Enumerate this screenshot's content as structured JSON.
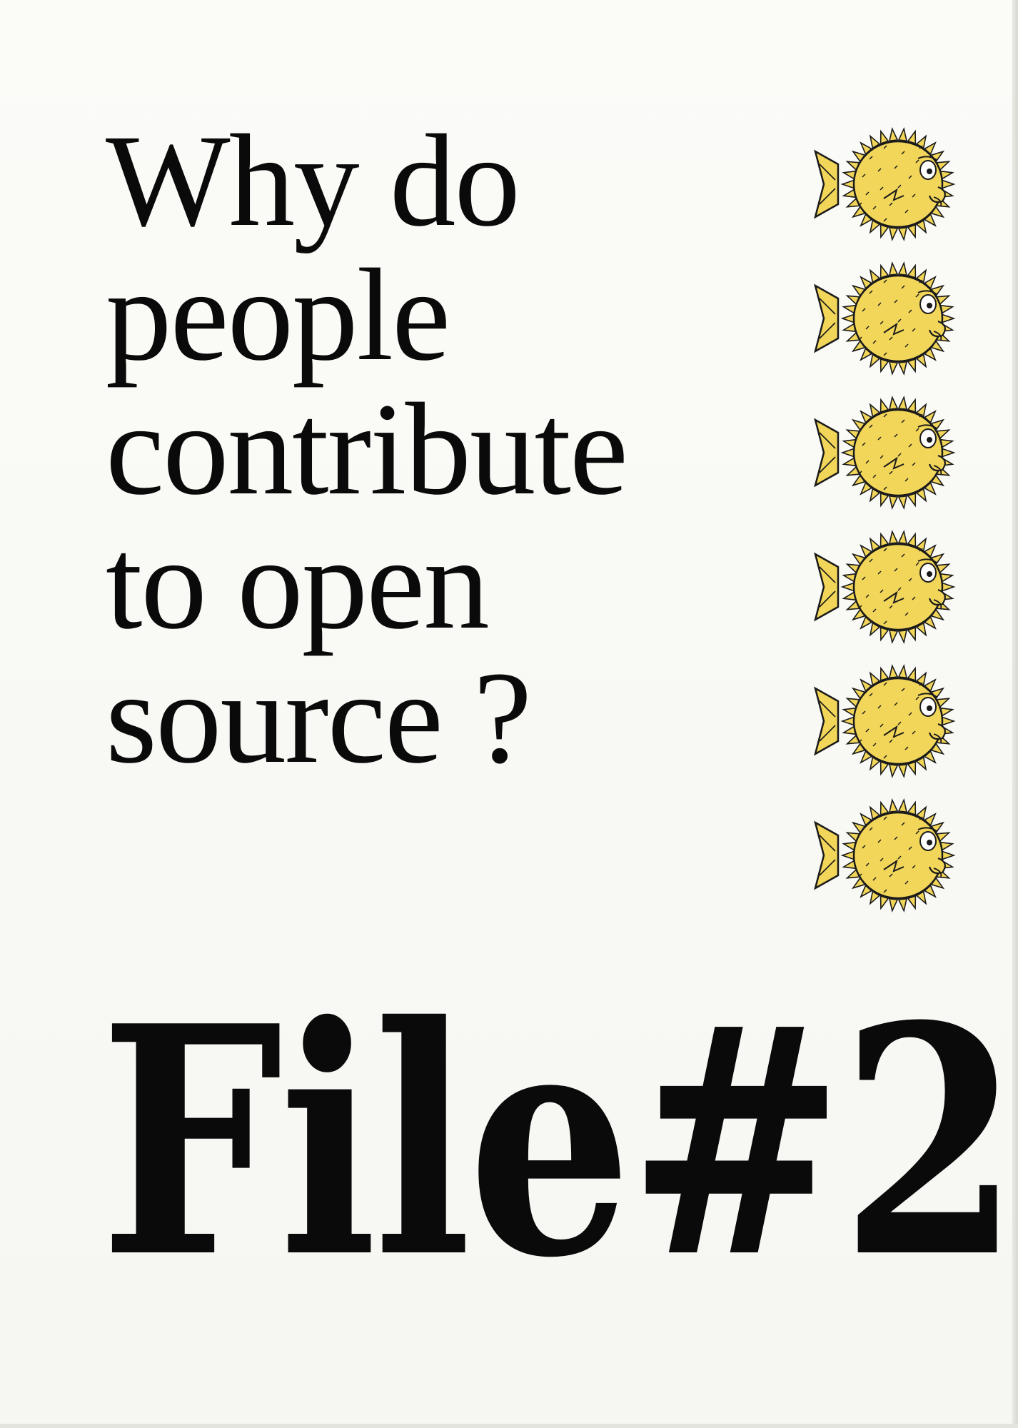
{
  "cover": {
    "headline_lines": [
      "Why do",
      "people",
      "contribute",
      "to open",
      "source ?"
    ],
    "issue_title": "File#2",
    "illustration": {
      "icon": "pufferfish-icon",
      "count": 6,
      "fill_color": "#f2d65a",
      "outline_color": "#1a1a1a"
    },
    "colors": {
      "paper": "#fbfbf8",
      "ink": "#0a0a0a"
    }
  }
}
